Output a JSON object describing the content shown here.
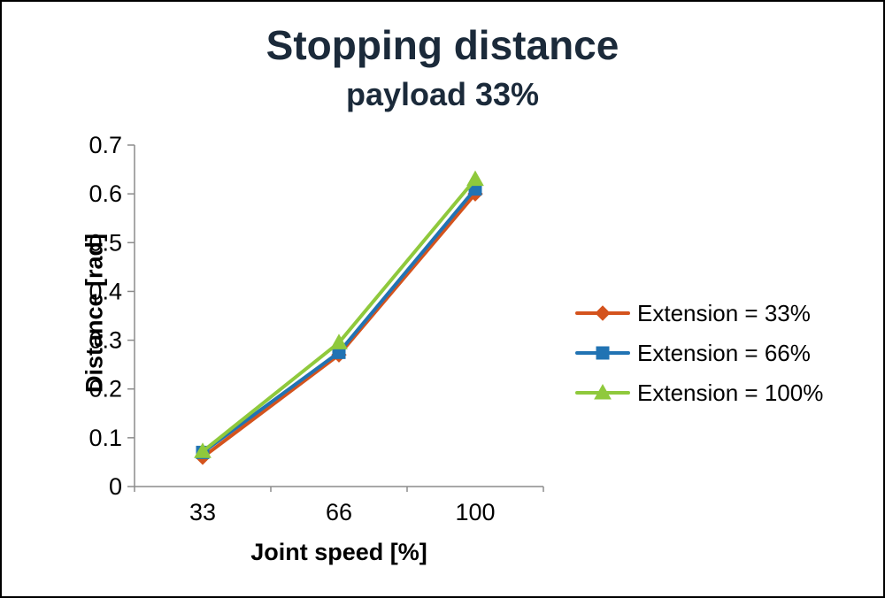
{
  "chart_data": {
    "type": "line",
    "title": "Stopping distance",
    "subtitle": "payload 33%",
    "xlabel": "Joint speed [%]",
    "ylabel": "Distance [rad]",
    "categories": [
      "33",
      "66",
      "100"
    ],
    "ylim": [
      0,
      0.7
    ],
    "ytick_step": 0.1,
    "grid": false,
    "legend_position": "right",
    "axis_color": "#8c8c8c",
    "text_color": "#000000",
    "series": [
      {
        "name": "Extension = 33%",
        "marker": "diamond",
        "color": "#d4531d",
        "values": [
          0.06,
          0.27,
          0.6
        ]
      },
      {
        "name": "Extension = 66%",
        "marker": "square",
        "color": "#2173b3",
        "values": [
          0.07,
          0.275,
          0.61
        ]
      },
      {
        "name": "Extension = 100%",
        "marker": "triangle",
        "color": "#8fc93c",
        "values": [
          0.072,
          0.295,
          0.63
        ]
      }
    ]
  }
}
